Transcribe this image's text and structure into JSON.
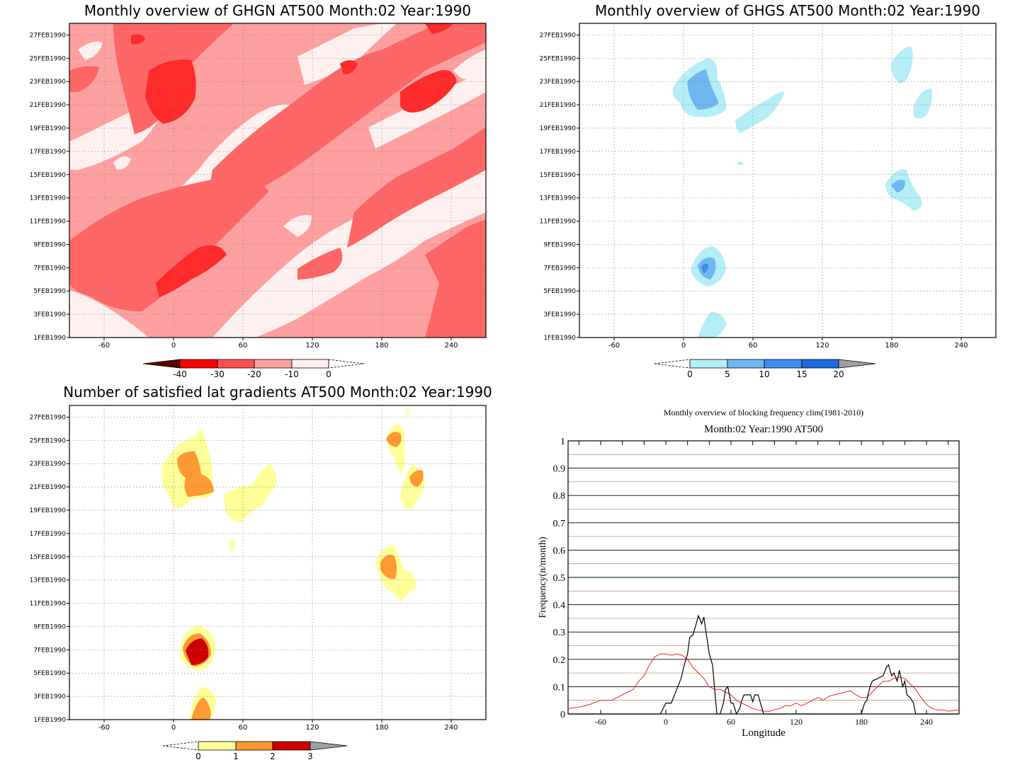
{
  "colors": {
    "ghgn": [
      "#fff0f0",
      "#ffa0a0",
      "#ff6666",
      "#ff2a2a",
      "#e80000"
    ],
    "ghgs": [
      "#b4eef7",
      "#6fb6f2",
      "#3e8cf0",
      "#1e6be0"
    ],
    "grad": [
      "#ffff99",
      "#ff9933",
      "#cc0000"
    ],
    "freq_clim": "#e8271d",
    "freq_year": "#000000",
    "minor_grid": "#c89090"
  },
  "x_ticks": [
    "-60",
    "0",
    "60",
    "120",
    "180",
    "240"
  ],
  "y_ticks": [
    "1FEB1990",
    "3FEB1990",
    "5FEB1990",
    "7FEB1990",
    "9FEB1990",
    "11FEB1990",
    "13FEB1990",
    "15FEB1990",
    "17FEB1990",
    "19FEB1990",
    "21FEB1990",
    "23FEB1990",
    "25FEB1990",
    "27FEB1990"
  ],
  "chart_data": [
    {
      "type": "heatmap",
      "title": "Monthly overview of GHGN AT500 Month:02 Year:1990",
      "x_range": [
        -90,
        270
      ],
      "y_range": [
        "1FEB1990",
        "28FEB1990"
      ],
      "grid": true,
      "colorbar": {
        "labels": [
          "-40",
          "-30",
          "-20",
          "-10",
          "0"
        ],
        "values": [
          -40,
          -30,
          -20,
          -10,
          0
        ],
        "colors": [
          "#8b0000",
          "#ff0000",
          "#ff5050",
          "#ffa0a0",
          "#fff0f0"
        ]
      }
    },
    {
      "type": "heatmap",
      "title": "Monthly overview of GHGS AT500 Month:02 Year:1990",
      "x_range": [
        -90,
        270
      ],
      "y_range": [
        "1FEB1990",
        "28FEB1990"
      ],
      "grid": true,
      "colorbar": {
        "labels": [
          "0",
          "5",
          "10",
          "15",
          "20"
        ],
        "values": [
          0,
          5,
          10,
          15,
          20
        ],
        "colors": [
          "#b4eef7",
          "#6fb6f2",
          "#3e8cf0",
          "#1e6be0"
        ]
      }
    },
    {
      "type": "heatmap",
      "title": "Number of satisfied lat gradients AT500 Month:02 Year:1990",
      "x_range": [
        -90,
        270
      ],
      "y_range": [
        "1FEB1990",
        "28FEB1990"
      ],
      "grid": true,
      "colorbar": {
        "labels": [
          "0",
          "1",
          "2",
          "3"
        ],
        "values": [
          0,
          1,
          2,
          3
        ],
        "colors": [
          "#ffff99",
          "#ff9933",
          "#cc0000"
        ]
      }
    },
    {
      "type": "line",
      "title": "Monthly overview of blocking frequency clim(1981-2010)",
      "subtitle": "Month:02 Year:1990  AT500",
      "xlabel": "Longitude",
      "ylabel": "Frequency(n/month)",
      "xlim": [
        -90,
        270
      ],
      "ylim": [
        0,
        1
      ],
      "x_ticks": [
        "-60",
        "0",
        "60",
        "120",
        "180",
        "240"
      ],
      "y_ticks": [
        "0",
        "0.1",
        "0.2",
        "0.3",
        "0.4",
        "0.5",
        "0.6",
        "0.7",
        "0.8",
        "0.9",
        "1"
      ],
      "grid": true,
      "series": [
        {
          "color": "#e8271d",
          "x": [
            -90,
            -80,
            -70,
            -60,
            -50,
            -40,
            -30,
            -25,
            -20,
            -15,
            -10,
            -5,
            0,
            5,
            10,
            15,
            20,
            25,
            30,
            35,
            40,
            45,
            50,
            55,
            60,
            65,
            70,
            75,
            80,
            85,
            90,
            95,
            100,
            105,
            110,
            115,
            120,
            125,
            130,
            135,
            140,
            145,
            150,
            155,
            160,
            165,
            170,
            175,
            180,
            185,
            190,
            195,
            200,
            205,
            210,
            215,
            220,
            225,
            230,
            235,
            240,
            245,
            250,
            255,
            260,
            270
          ],
          "y": [
            0.02,
            0.025,
            0.035,
            0.05,
            0.05,
            0.07,
            0.09,
            0.12,
            0.14,
            0.18,
            0.21,
            0.22,
            0.22,
            0.215,
            0.22,
            0.215,
            0.2,
            0.17,
            0.15,
            0.13,
            0.1,
            0.09,
            0.09,
            0.08,
            0.07,
            0.05,
            0.04,
            0.03,
            0.02,
            0.015,
            0.01,
            0.01,
            0.015,
            0.02,
            0.03,
            0.03,
            0.04,
            0.03,
            0.04,
            0.05,
            0.06,
            0.05,
            0.065,
            0.07,
            0.075,
            0.08,
            0.085,
            0.07,
            0.06,
            0.06,
            0.08,
            0.1,
            0.12,
            0.12,
            0.13,
            0.135,
            0.13,
            0.11,
            0.09,
            0.06,
            0.035,
            0.02,
            0.015,
            0.015,
            0.01,
            0.015
          ]
        },
        {
          "color": "#000000",
          "x": [
            -90,
            -5,
            0,
            5,
            10,
            14,
            17,
            20,
            22,
            25,
            28,
            30,
            33,
            35,
            37,
            40,
            43,
            45,
            47,
            48,
            50,
            53,
            55,
            57,
            60,
            62,
            65,
            68,
            70,
            72,
            75,
            78,
            80,
            82,
            85,
            90,
            95,
            100,
            105,
            110,
            160,
            170,
            180,
            183,
            185,
            188,
            190,
            195,
            200,
            203,
            205,
            208,
            210,
            213,
            215,
            218,
            220,
            222,
            225,
            228,
            230,
            270
          ],
          "y": [
            0,
            0,
            0.04,
            0.04,
            0.09,
            0.13,
            0.18,
            0.22,
            0.28,
            0.29,
            0.33,
            0.36,
            0.33,
            0.355,
            0.3,
            0.22,
            0.18,
            0.09,
            0,
            0,
            0,
            0.04,
            0.09,
            0.1,
            0.04,
            0.04,
            0,
            0.02,
            0.05,
            0.07,
            0.07,
            0.07,
            0.045,
            0.07,
            0.07,
            0,
            0,
            0,
            0,
            0,
            0,
            0,
            0,
            0.04,
            0.05,
            0.1,
            0.12,
            0.13,
            0.14,
            0.17,
            0.18,
            0.14,
            0.15,
            0.12,
            0.16,
            0.1,
            0.12,
            0.07,
            0.06,
            0.04,
            0,
            0
          ]
        }
      ]
    }
  ]
}
